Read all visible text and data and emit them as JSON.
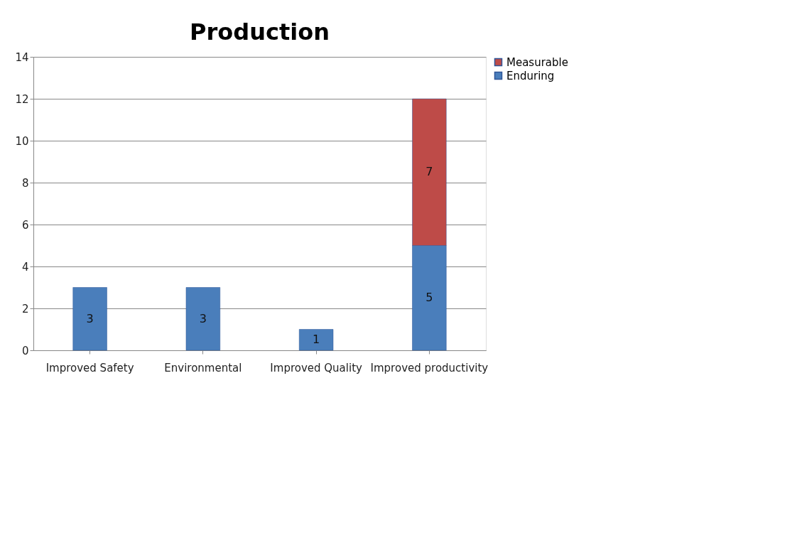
{
  "chart_data": {
    "type": "bar",
    "title": "Production",
    "categories": [
      "Improved Safety",
      "Environmental",
      "Improved Quality",
      "Improved productivity"
    ],
    "series": [
      {
        "name": "Enduring",
        "color": "#4a7ebb",
        "values": [
          3,
          3,
          1,
          5
        ]
      },
      {
        "name": "Measurable",
        "color": "#be4b48",
        "values": [
          null,
          null,
          null,
          7
        ]
      }
    ],
    "stacked": true,
    "data_labels": true,
    "ylim": [
      0,
      14
    ],
    "yticks": [
      0,
      2,
      4,
      6,
      8,
      10,
      12,
      14
    ],
    "grid": "y",
    "legend": "right"
  }
}
